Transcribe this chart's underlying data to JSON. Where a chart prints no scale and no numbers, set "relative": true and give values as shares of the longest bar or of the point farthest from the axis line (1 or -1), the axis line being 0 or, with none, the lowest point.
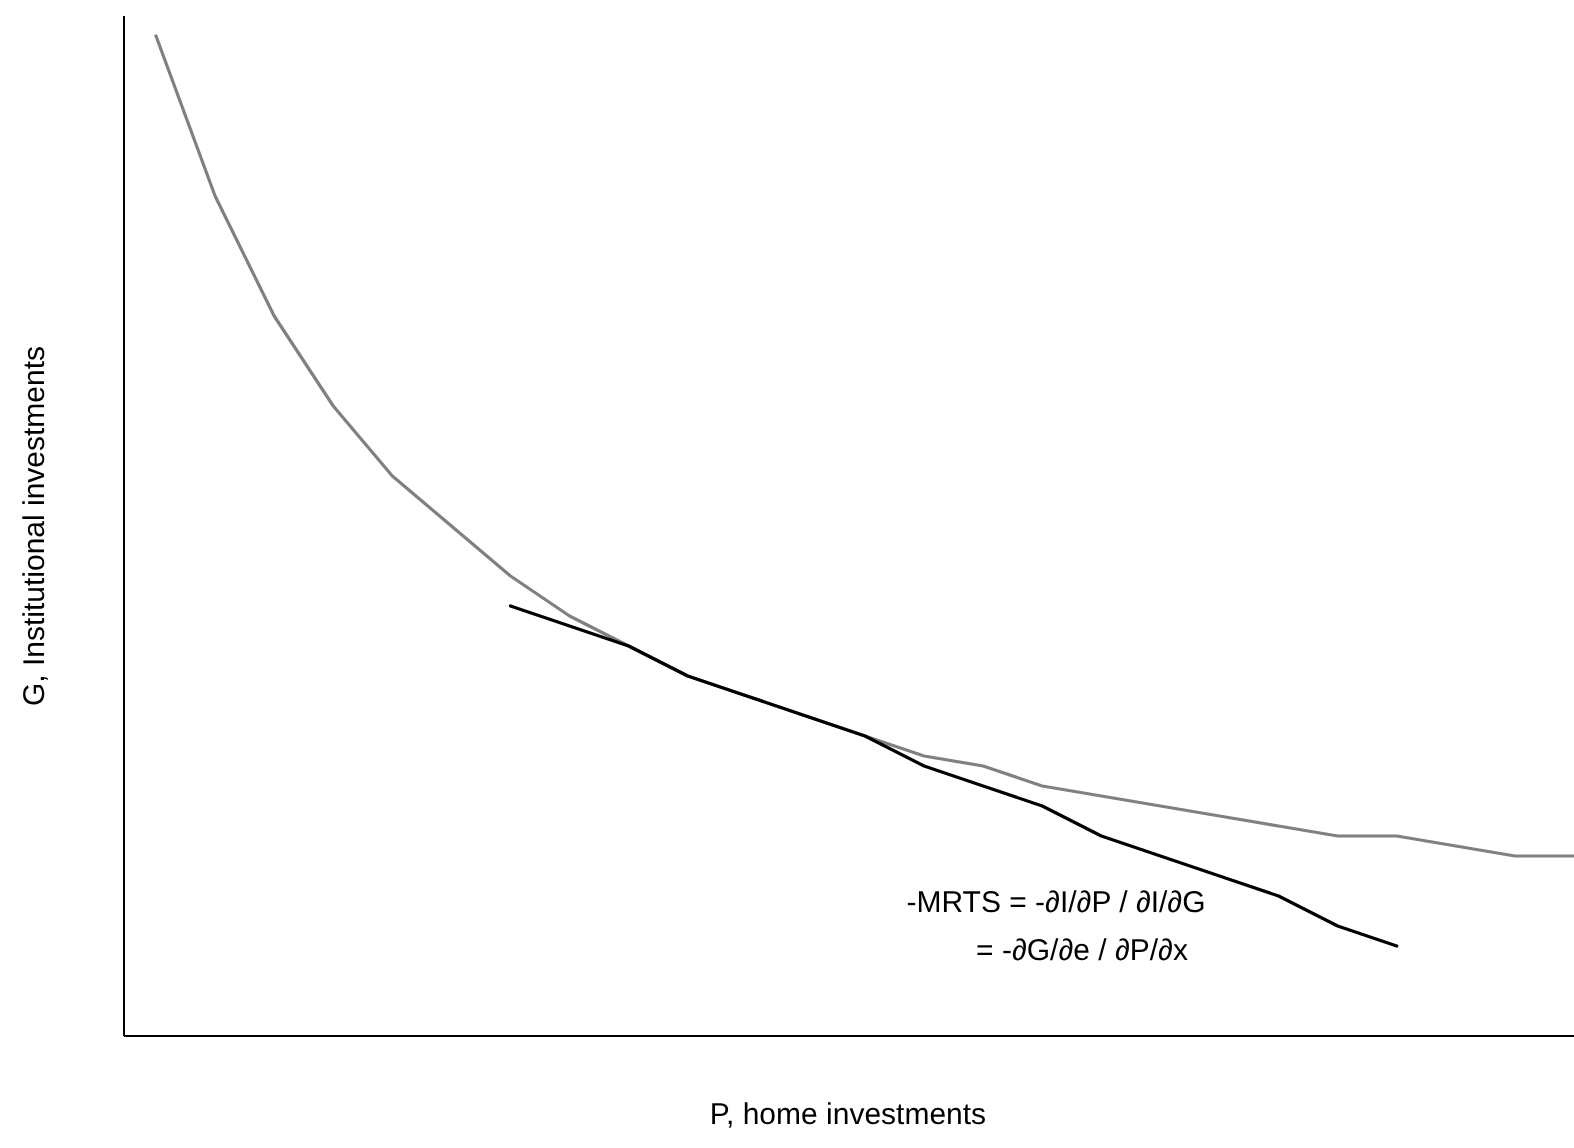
{
  "chart_data": {
    "type": "line",
    "relative": true,
    "xlabel": "P, home investments",
    "ylabel": "G, Institutional investments",
    "categories": [
      null,
      null,
      null,
      null,
      null,
      null,
      null,
      null,
      null,
      null,
      null,
      null,
      null,
      null,
      null,
      null,
      null,
      null,
      null,
      null,
      null,
      null,
      null,
      null,
      null
    ],
    "series": [
      {
        "color": "#808080",
        "values": [
          1,
          0.84,
          0.72,
          0.63,
          0.56,
          0.51,
          0.46,
          0.42,
          0.39,
          0.36,
          0.34,
          0.32,
          0.3,
          0.28,
          0.27,
          0.25,
          0.24,
          0.23,
          0.22,
          0.21,
          0.2,
          0.2,
          0.19,
          0.18,
          0.18
        ]
      },
      {
        "color": "#000000",
        "values": [
          null,
          null,
          null,
          null,
          null,
          null,
          0.43,
          0.41,
          0.39,
          0.36,
          0.34,
          0.32,
          0.3,
          0.27,
          0.25,
          0.23,
          0.2,
          0.18,
          0.16,
          0.14,
          0.11,
          0.09,
          null,
          null,
          null
        ]
      }
    ],
    "annotations": [
      "-MRTS = -∂I/∂P / ∂I/∂G",
      "= -∂G/∂e / ∂P/∂x"
    ]
  }
}
